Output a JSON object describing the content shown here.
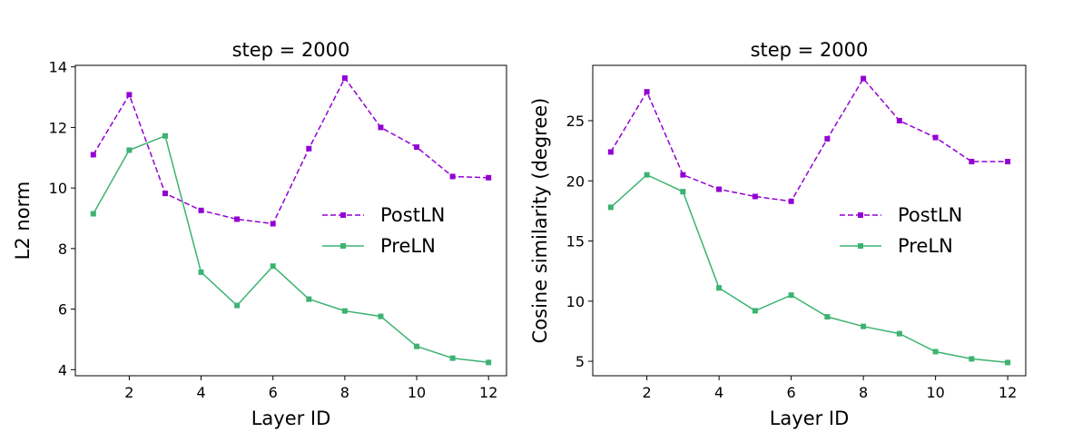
{
  "colors": {
    "postln": "#9400D3",
    "preln": "#3CB371"
  },
  "chart_data": [
    {
      "type": "line",
      "title": "step = 2000",
      "xlabel": "Layer ID",
      "ylabel": "L2 norm",
      "xlim": [
        0.5,
        12.5
      ],
      "ylim": [
        3.8,
        14.05
      ],
      "xticks": [
        2,
        4,
        6,
        8,
        10,
        12
      ],
      "yticks": [
        4,
        6,
        8,
        10,
        12,
        14
      ],
      "grid": false,
      "legend_position": "center-right",
      "x": [
        1,
        2,
        3,
        4,
        5,
        6,
        7,
        8,
        9,
        10,
        11,
        12
      ],
      "series": [
        {
          "name": "PostLN",
          "style": "dashed",
          "marker": "square",
          "values": [
            11.1,
            13.08,
            9.82,
            9.26,
            8.97,
            8.82,
            11.3,
            13.63,
            12.0,
            11.35,
            10.38,
            10.34
          ]
        },
        {
          "name": "PreLN",
          "style": "solid",
          "marker": "square",
          "values": [
            9.15,
            11.25,
            11.72,
            7.22,
            6.12,
            7.42,
            6.33,
            5.94,
            5.76,
            4.77,
            4.38,
            4.24
          ]
        }
      ]
    },
    {
      "type": "line",
      "title": "step = 2000",
      "xlabel": "Layer ID",
      "ylabel": "Cosine similarity (degree)",
      "xlim": [
        0.5,
        12.5
      ],
      "ylim": [
        3.8,
        29.6
      ],
      "xticks": [
        2,
        4,
        6,
        8,
        10,
        12
      ],
      "yticks": [
        5,
        10,
        15,
        20,
        25
      ],
      "grid": false,
      "legend_position": "center-right",
      "x": [
        1,
        2,
        3,
        4,
        5,
        6,
        7,
        8,
        9,
        10,
        11,
        12
      ],
      "series": [
        {
          "name": "PostLN",
          "style": "dashed",
          "marker": "square",
          "values": [
            22.4,
            27.4,
            20.5,
            19.3,
            18.7,
            18.3,
            23.5,
            28.5,
            25.0,
            23.6,
            21.6,
            21.6
          ]
        },
        {
          "name": "PreLN",
          "style": "solid",
          "marker": "square",
          "values": [
            17.8,
            20.5,
            19.1,
            11.1,
            9.2,
            10.5,
            8.7,
            7.9,
            7.3,
            5.8,
            5.2,
            4.9
          ]
        }
      ]
    }
  ]
}
